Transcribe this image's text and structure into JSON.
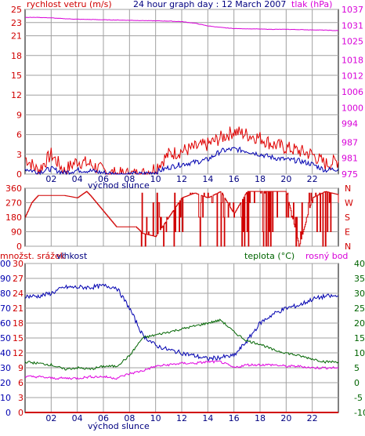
{
  "colors": {
    "grid": "#a0a0a0",
    "frame": "#000000",
    "wind_dir": "#d00000",
    "wind_gust": "#e00000",
    "wind_avg": "#0000b0",
    "pressure": "#d800d8",
    "humidity": "#0000b0",
    "temperature": "#006400",
    "dewpoint": "#e000e0",
    "rain": "#d00000"
  },
  "top": {
    "left_title": "rychlost vetru (m/s)",
    "center_title": "24 hour graph day : 12 March 2007",
    "right_title": "tlak (hPa)",
    "sunrise_label": "východ slunce"
  },
  "middle": {
    "compass_labels": [
      "N",
      "W",
      "S",
      "E",
      "N"
    ]
  },
  "bottom": {
    "left_title": "množst. srážek",
    "left_title2": "vlhkost",
    "center_title": "teplota (°C)",
    "right_title": "rosný bod",
    "sunrise_label": "východ slunce"
  },
  "chart_data": [
    {
      "type": "line",
      "title": "24 hour graph day : 12 March 2007",
      "xlabel": "východ slunce",
      "ylabel": "rychlost vetru (m/s)",
      "y2label": "tlak (hPa)",
      "x_ticks": [
        "02",
        "04",
        "06",
        "08",
        "10",
        "12",
        "14",
        "16",
        "18",
        "20",
        "22"
      ],
      "ylim": [
        0,
        25
      ],
      "y_ticks": [
        0,
        3,
        6,
        9,
        12,
        15,
        18,
        21,
        23,
        25
      ],
      "y2lim": [
        975,
        1037
      ],
      "y2_ticks": [
        975,
        981,
        987,
        994,
        1000,
        1006,
        1012,
        1018,
        1025,
        1031,
        1037
      ],
      "x": [
        0,
        1,
        2,
        3,
        4,
        5,
        6,
        7,
        8,
        9,
        10,
        11,
        12,
        13,
        14,
        15,
        16,
        17,
        18,
        19,
        20,
        21,
        22,
        23,
        24
      ],
      "series": [
        {
          "name": "wind gust",
          "axis": "left",
          "values": [
            2.5,
            0.5,
            3.0,
            0.5,
            2.0,
            1.5,
            0.5,
            0,
            0,
            0,
            1.0,
            3.0,
            3.5,
            4.0,
            4.5,
            5.5,
            6.5,
            6.0,
            5.5,
            4.5,
            4.0,
            3.5,
            3.0,
            1.5,
            2.0
          ]
        },
        {
          "name": "wind average",
          "axis": "left",
          "values": [
            0.8,
            0.3,
            0.8,
            0.2,
            0.6,
            0.5,
            0.2,
            0,
            0,
            0,
            0.3,
            1.0,
            1.5,
            1.8,
            2.2,
            3.5,
            3.8,
            3.5,
            3.0,
            2.5,
            2.2,
            2.0,
            1.5,
            0.6,
            0.8
          ]
        },
        {
          "name": "pressure",
          "axis": "right",
          "values": [
            1034,
            1034,
            1033.8,
            1033.5,
            1033.3,
            1033.2,
            1033.1,
            1033.0,
            1032.9,
            1032.8,
            1032.7,
            1032.6,
            1032.4,
            1031.8,
            1030.8,
            1030.2,
            1029.8,
            1029.7,
            1029.6,
            1029.5,
            1029.5,
            1029.4,
            1029.3,
            1029.2,
            1029.0
          ]
        }
      ]
    },
    {
      "type": "line",
      "title": "",
      "ylabel": "",
      "x_ticks": [
        "02",
        "04",
        "06",
        "08",
        "10",
        "12",
        "14",
        "16",
        "18",
        "20",
        "22"
      ],
      "ylim": [
        0,
        360
      ],
      "y_ticks": [
        0,
        90,
        180,
        270,
        360
      ],
      "x": [
        0,
        0.5,
        1,
        3,
        4,
        4.7,
        5,
        7,
        8,
        8.5,
        9,
        10,
        11,
        12,
        13,
        14,
        15,
        16,
        17,
        18,
        19,
        20,
        21,
        22,
        23,
        24
      ],
      "series": [
        {
          "name": "wind direction",
          "values": [
            180,
            270,
            315,
            315,
            300,
            340,
            315,
            120,
            120,
            120,
            80,
            60,
            180,
            300,
            330,
            300,
            340,
            200,
            340,
            340,
            340,
            340,
            0,
            300,
            340,
            320
          ]
        }
      ]
    },
    {
      "type": "line",
      "title": "",
      "xlabel": "východ slunce",
      "ylabel": "množst. srážek / vlhkost",
      "x_ticks": [
        "02",
        "04",
        "06",
        "08",
        "10",
        "12",
        "14",
        "16",
        "18",
        "20",
        "22"
      ],
      "ylim": [
        0,
        100
      ],
      "y_ticks": [
        0,
        10,
        20,
        30,
        40,
        50,
        60,
        70,
        80,
        90,
        100
      ],
      "rain_ticks": [
        0,
        3,
        6,
        9,
        12,
        15,
        18,
        21,
        24,
        27,
        30
      ],
      "y2lim": [
        -10,
        40
      ],
      "y2_ticks": [
        -10,
        -5,
        0,
        5,
        10,
        15,
        20,
        25,
        30,
        35,
        40
      ],
      "x": [
        0,
        1,
        2,
        3,
        4,
        5,
        6,
        7,
        8,
        9,
        10,
        11,
        12,
        13,
        14,
        15,
        16,
        17,
        18,
        19,
        20,
        21,
        22,
        23,
        24
      ],
      "series": [
        {
          "name": "humidity",
          "axis": "left",
          "values": [
            78,
            78,
            80,
            84,
            84,
            84,
            85,
            84,
            70,
            52,
            45,
            42,
            40,
            38,
            36,
            37,
            38,
            48,
            60,
            66,
            70,
            72,
            76,
            78,
            78
          ]
        },
        {
          "name": "temperature",
          "axis": "right",
          "values": [
            7,
            6.5,
            6,
            4.5,
            5,
            4.5,
            5.5,
            5.5,
            9,
            15,
            16,
            17,
            18,
            19,
            20,
            21,
            17,
            14,
            13,
            11,
            10,
            9,
            8,
            7,
            7
          ]
        },
        {
          "name": "dewpoint",
          "axis": "right",
          "values": [
            2,
            2,
            1.5,
            1.5,
            1.5,
            2,
            2,
            1.5,
            3,
            4,
            5.5,
            6,
            6.5,
            6.5,
            7,
            7,
            5,
            6,
            6,
            6,
            5.5,
            5.5,
            5,
            5,
            5
          ]
        },
        {
          "name": "precipitation",
          "axis": "rain",
          "values": [
            0,
            0,
            0,
            0,
            0,
            0,
            0,
            0,
            0,
            0,
            0,
            0,
            0,
            0,
            0,
            0,
            0,
            0,
            0,
            0,
            0,
            0,
            0,
            0,
            0
          ]
        }
      ]
    }
  ]
}
